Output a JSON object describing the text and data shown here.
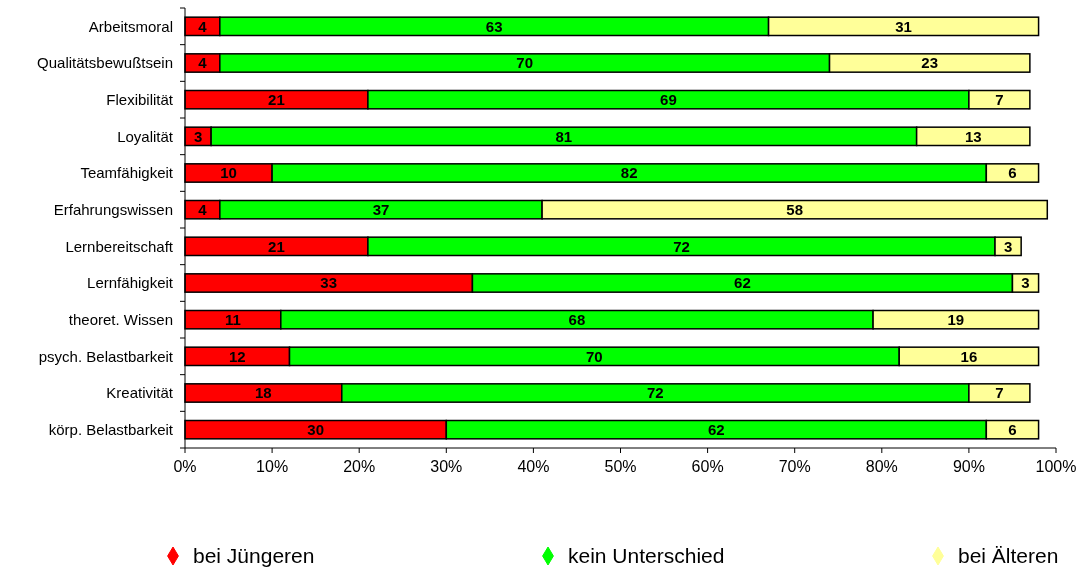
{
  "chart_data": {
    "type": "bar",
    "orientation": "horizontal",
    "stacked": true,
    "data_labels": true,
    "legend": "bottom",
    "grid": false,
    "marker": "diamond",
    "categories": [
      "Arbeitsmoral",
      "Qualitätsbewußtsein",
      "Flexibilität",
      "Loyalität",
      "Teamfähigkeit",
      "Erfahrungswissen",
      "Lernbereitschaft",
      "Lernfähigkeit",
      "theoret. Wissen",
      "psych. Belastbarkeit",
      "Kreativität",
      "körp. Belastbarkeit"
    ],
    "series": [
      {
        "name": "bei Jüngeren",
        "color": "#ff0000",
        "values": [
          4,
          4,
          21,
          3,
          10,
          4,
          21,
          33,
          11,
          12,
          18,
          30
        ]
      },
      {
        "name": "kein Unterschied",
        "color": "#00ff00",
        "values": [
          63,
          70,
          69,
          81,
          82,
          37,
          72,
          62,
          68,
          70,
          72,
          62
        ]
      },
      {
        "name": "bei Älteren",
        "color": "#ffff99",
        "values": [
          31,
          23,
          7,
          13,
          6,
          58,
          3,
          3,
          19,
          16,
          7,
          6
        ]
      }
    ],
    "xlim": [
      0,
      100
    ],
    "xticks": [
      {
        "value": 0,
        "label": "0%"
      },
      {
        "value": 10,
        "label": "10%"
      },
      {
        "value": 20,
        "label": "20%"
      },
      {
        "value": 30,
        "label": "30%"
      },
      {
        "value": 40,
        "label": "40%"
      },
      {
        "value": 50,
        "label": "50%"
      },
      {
        "value": 60,
        "label": "60%"
      },
      {
        "value": 70,
        "label": "70%"
      },
      {
        "value": 80,
        "label": "80%"
      },
      {
        "value": 90,
        "label": "90%"
      },
      {
        "value": 100,
        "label": "100%"
      }
    ]
  }
}
